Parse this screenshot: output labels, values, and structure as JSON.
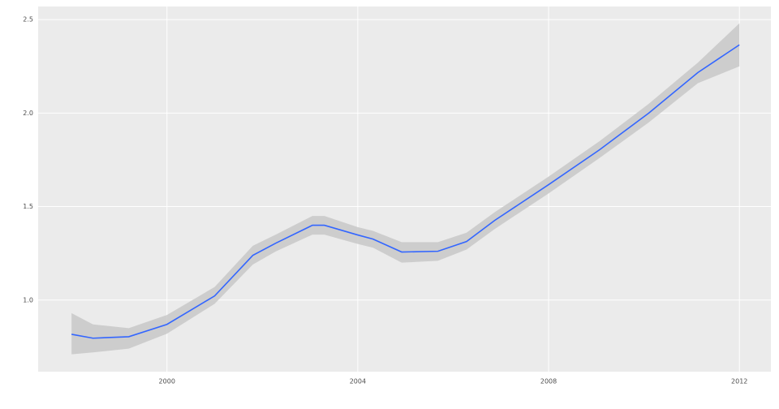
{
  "chart_data": {
    "type": "line",
    "x": [
      1998.0,
      1998.45,
      1999.2,
      2000,
      2001,
      2001.8,
      2002.28,
      2003.05,
      2003.3,
      2004,
      2004.32,
      2004.92,
      2005.68,
      2006.28,
      2006.87,
      2008,
      2009.07,
      2010.1,
      2011.13,
      2012
    ],
    "series": [
      {
        "color": "#3366ff",
        "values": [
          0.817,
          0.796,
          0.804,
          0.87,
          1.022,
          1.239,
          1.304,
          1.4,
          1.4,
          1.348,
          1.326,
          1.257,
          1.261,
          1.313,
          1.426,
          1.617,
          1.804,
          2.0,
          2.217,
          2.365
        ]
      }
    ],
    "band": {
      "color": "#c8c8c8",
      "lower": [
        0.71,
        0.72,
        0.74,
        0.82,
        0.98,
        1.19,
        1.26,
        1.35,
        1.35,
        1.3,
        1.28,
        1.2,
        1.21,
        1.27,
        1.38,
        1.57,
        1.76,
        1.95,
        2.16,
        2.25
      ],
      "upper": [
        0.93,
        0.87,
        0.85,
        0.92,
        1.07,
        1.29,
        1.35,
        1.45,
        1.45,
        1.39,
        1.37,
        1.31,
        1.31,
        1.36,
        1.47,
        1.66,
        1.85,
        2.05,
        2.27,
        2.48
      ]
    },
    "xlim": [
      1997.3,
      2012.66
    ],
    "ylim": [
      0.617,
      2.57
    ],
    "xticks": [
      2000,
      2004,
      2008,
      2012
    ],
    "yticks": [
      {
        "value": 1,
        "label": "1.0"
      },
      {
        "value": 1.5,
        "label": "1.5"
      },
      {
        "value": 2,
        "label": "2.0"
      },
      {
        "value": 2.5,
        "label": "2.5"
      }
    ],
    "grid": true
  }
}
